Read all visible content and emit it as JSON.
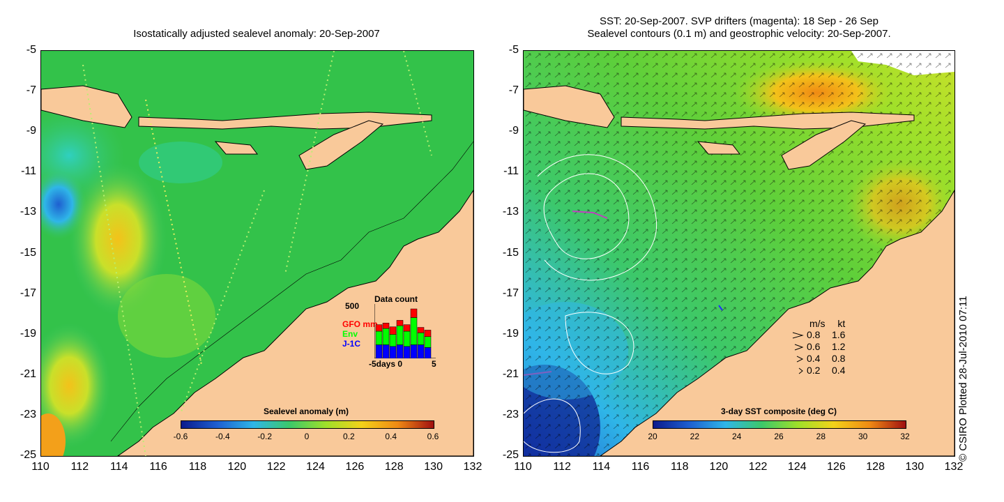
{
  "left_panel": {
    "title": "Isostatically adjusted sealevel anomaly: 20-Sep-2007",
    "colorbar": {
      "label": "Sealevel anomaly (m)",
      "ticks": [
        "-0.6",
        "-0.4",
        "-0.2",
        "0",
        "0.2",
        "0.4",
        "0.6"
      ],
      "colors": [
        "#0b1a8c",
        "#1e5fd0",
        "#2fb6e8",
        "#3cc86a",
        "#9ee02a",
        "#f3d21a",
        "#f08a14",
        "#a01010"
      ]
    },
    "inset": {
      "title": "Data count",
      "ymax_label": "500",
      "series": [
        {
          "name": "GFO mm",
          "color": "#ff0000"
        },
        {
          "name": "Env",
          "color": "#00ff00"
        },
        {
          "name": "J-1C",
          "color": "#0000ff"
        }
      ],
      "x_axis": "-5days 0",
      "x_end": "5",
      "bars": [
        {
          "gfo": 0.12,
          "env": 0.25,
          "j1": 0.25
        },
        {
          "gfo": 0.1,
          "env": 0.3,
          "j1": 0.25
        },
        {
          "gfo": 0.14,
          "env": 0.22,
          "j1": 0.22
        },
        {
          "gfo": 0.1,
          "env": 0.35,
          "j1": 0.25
        },
        {
          "gfo": 0.12,
          "env": 0.28,
          "j1": 0.22
        },
        {
          "gfo": 0.16,
          "env": 0.5,
          "j1": 0.25
        },
        {
          "gfo": 0.1,
          "env": 0.22,
          "j1": 0.25
        },
        {
          "gfo": 0.12,
          "env": 0.2,
          "j1": 0.2
        }
      ]
    }
  },
  "right_panel": {
    "title_line1": "SST: 20-Sep-2007. SVP drifters (magenta): 18 Sep - 26 Sep",
    "title_line2": "Sealevel contours (0.1 m) and geostrophic velocity: 20-Sep-2007.",
    "colorbar": {
      "label": "3-day SST composite (deg C)",
      "ticks": [
        "20",
        "22",
        "24",
        "26",
        "28",
        "30",
        "32"
      ],
      "colors": [
        "#0b1a8c",
        "#1e5fd0",
        "#2fb6e8",
        "#3cc86a",
        "#9ee02a",
        "#f3d21a",
        "#f08a14",
        "#a01010"
      ]
    },
    "speed_legend": {
      "header_ms": "m/s",
      "header_kt": "kt",
      "rows": [
        {
          "ms": "0.8",
          "kt": "1.6"
        },
        {
          "ms": "0.6",
          "kt": "1.2"
        },
        {
          "ms": "0.4",
          "kt": "0.8"
        },
        {
          "ms": "0.2",
          "kt": "0.4"
        }
      ]
    }
  },
  "axes": {
    "y_labels": [
      "-5",
      "-7",
      "-9",
      "-11",
      "-13",
      "-15",
      "-17",
      "-19",
      "-21",
      "-23",
      "-25"
    ],
    "x_labels": [
      "110",
      "112",
      "114",
      "116",
      "118",
      "120",
      "122",
      "124",
      "126",
      "128",
      "130",
      "132"
    ]
  },
  "credit": "© CSIRO Plotted 28-Jul-2010 07:11",
  "colors": {
    "land": "#f9c99a",
    "ocean_green": "#33c24a",
    "ocean_light": "#5ccf3a"
  }
}
